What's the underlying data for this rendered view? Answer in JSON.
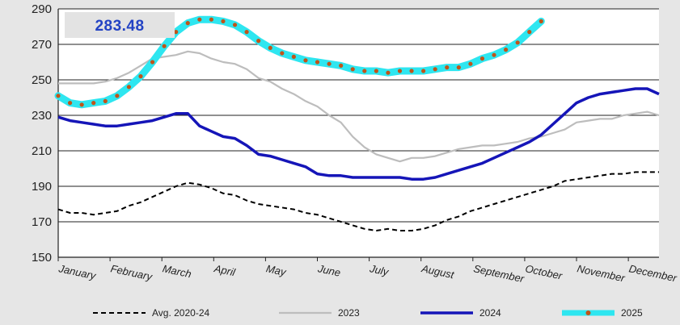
{
  "chart_data": {
    "type": "line",
    "title": "",
    "xlabel": "",
    "ylabel": "",
    "ylim": [
      150,
      290
    ],
    "yticks": [
      150,
      170,
      190,
      210,
      230,
      250,
      270,
      290
    ],
    "xlim": [
      0,
      51
    ],
    "months": [
      "January",
      "February",
      "March",
      "April",
      "May",
      "June",
      "July",
      "August",
      "September",
      "October",
      "November",
      "December"
    ],
    "month_positions": [
      0,
      4.4,
      8.8,
      13.2,
      17.6,
      22.0,
      26.4,
      30.8,
      35.2,
      39.6,
      44.0,
      48.4
    ],
    "grid": "horizontal",
    "legend_position": "bottom",
    "callout_value": "283.48",
    "series": [
      {
        "key": "avg",
        "name": "Avg. 2020-24",
        "color": "#000000",
        "style": "dashed",
        "x": [
          0,
          1,
          2,
          3,
          4,
          5,
          6,
          7,
          8,
          9,
          10,
          11,
          12,
          13,
          14,
          15,
          16,
          17,
          18,
          19,
          20,
          21,
          22,
          23,
          24,
          25,
          26,
          27,
          28,
          29,
          30,
          31,
          32,
          33,
          34,
          35,
          36,
          37,
          38,
          39,
          40,
          41,
          42,
          43,
          44,
          45,
          46,
          47,
          48,
          49,
          50,
          51
        ],
        "values": [
          177,
          175,
          175,
          174,
          175,
          176,
          179,
          181,
          184,
          187,
          190,
          192,
          191,
          189,
          186,
          185,
          182,
          180,
          179,
          178,
          177,
          175,
          174,
          172,
          170,
          168,
          166,
          165,
          166,
          165,
          165,
          166,
          168,
          171,
          173,
          176,
          178,
          180,
          182,
          184,
          186,
          188,
          190,
          193,
          194,
          195,
          196,
          197,
          197,
          198,
          198,
          198
        ]
      },
      {
        "key": "y2023",
        "name": "2023",
        "color": "#bdbdbd",
        "style": "solid",
        "x": [
          0,
          1,
          2,
          3,
          4,
          5,
          6,
          7,
          8,
          9,
          10,
          11,
          12,
          13,
          14,
          15,
          16,
          17,
          18,
          19,
          20,
          21,
          22,
          23,
          24,
          25,
          26,
          27,
          28,
          29,
          30,
          31,
          32,
          33,
          34,
          35,
          36,
          37,
          38,
          39,
          40,
          41,
          42,
          43,
          44,
          45,
          46,
          47,
          48,
          49,
          50,
          51
        ],
        "values": [
          248,
          248,
          248,
          248,
          249,
          251,
          254,
          258,
          262,
          263,
          264,
          266,
          265,
          262,
          260,
          259,
          256,
          251,
          249,
          245,
          242,
          238,
          235,
          230,
          226,
          218,
          212,
          208,
          206,
          204,
          206,
          206,
          207,
          209,
          211,
          212,
          213,
          213,
          214,
          215,
          217,
          218,
          220,
          222,
          226,
          227,
          228,
          228,
          230,
          231,
          232,
          230
        ]
      },
      {
        "key": "y2024",
        "name": "2024",
        "color": "#1515b8",
        "style": "solid",
        "x": [
          0,
          1,
          2,
          3,
          4,
          5,
          6,
          7,
          8,
          9,
          10,
          11,
          12,
          13,
          14,
          15,
          16,
          17,
          18,
          19,
          20,
          21,
          22,
          23,
          24,
          25,
          26,
          27,
          28,
          29,
          30,
          31,
          32,
          33,
          34,
          35,
          36,
          37,
          38,
          39,
          40,
          41,
          42,
          43,
          44,
          45,
          46,
          47,
          48,
          49,
          50,
          51
        ],
        "values": [
          229,
          227,
          226,
          225,
          224,
          224,
          225,
          226,
          227,
          229,
          231,
          231,
          224,
          221,
          218,
          217,
          213,
          208,
          207,
          205,
          203,
          201,
          197,
          196,
          196,
          195,
          195,
          195,
          195,
          195,
          194,
          194,
          195,
          197,
          199,
          201,
          203,
          206,
          209,
          212,
          215,
          219,
          225,
          231,
          237,
          240,
          242,
          243,
          244,
          245,
          245,
          242
        ]
      },
      {
        "key": "y2025",
        "name": "2025",
        "color": "#2ee6f0",
        "marker_color": "#c0541a",
        "style": "marker",
        "x": [
          0,
          1,
          2,
          3,
          4,
          5,
          6,
          7,
          8,
          9,
          10,
          11,
          12,
          13,
          14,
          15,
          16,
          17,
          18,
          19,
          20,
          21,
          22,
          23,
          24,
          25,
          26,
          27,
          28,
          29,
          30,
          31,
          32,
          33,
          34,
          35,
          36,
          37,
          38,
          39,
          40,
          41
        ],
        "values": [
          241,
          237,
          236,
          237,
          238,
          241,
          246,
          252,
          260,
          269,
          277,
          282,
          284,
          284,
          283,
          281,
          277,
          272,
          268,
          265,
          263,
          261,
          260,
          259,
          258,
          256,
          255,
          255,
          254,
          255,
          255,
          255,
          256,
          257,
          257,
          259,
          262,
          264,
          267,
          271,
          277,
          283
        ]
      }
    ]
  }
}
